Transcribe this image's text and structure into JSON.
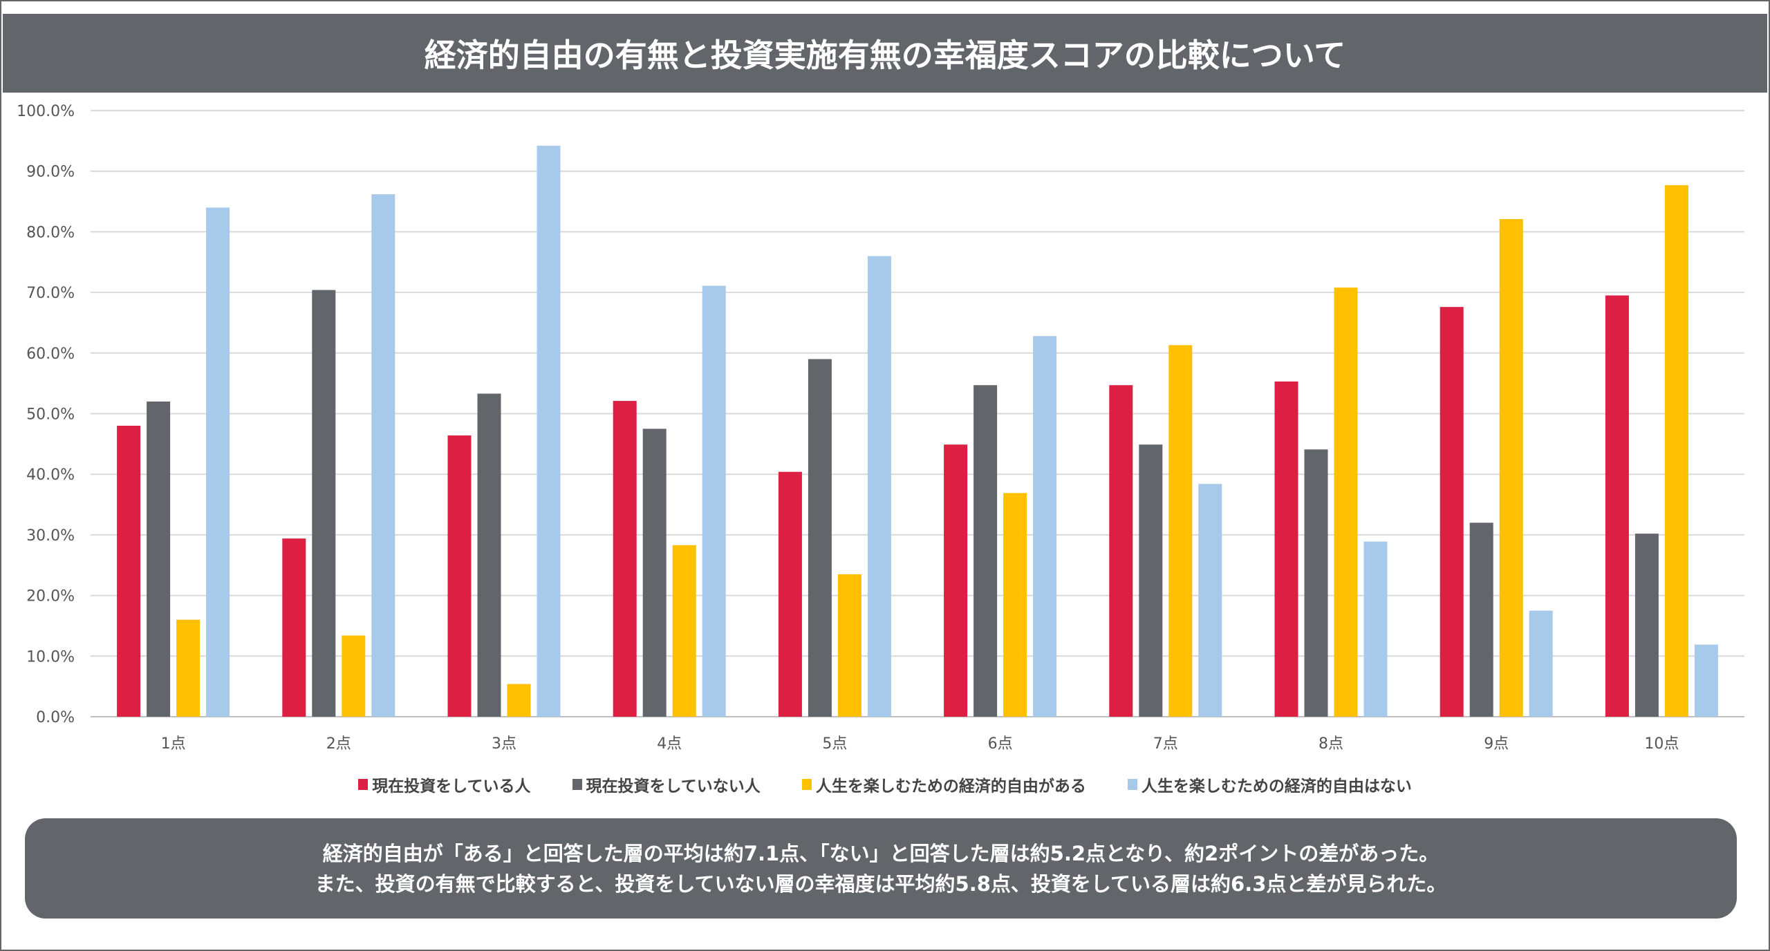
{
  "chart_data": {
    "type": "bar",
    "title": "経済的自由の有無と投資実施有無の幸福度スコアの比較について",
    "categories": [
      "1点",
      "2点",
      "3点",
      "4点",
      "5点",
      "6点",
      "7点",
      "8点",
      "9点",
      "10点"
    ],
    "ylim": [
      0,
      100
    ],
    "yticks": [
      "0.0%",
      "10.0%",
      "20.0%",
      "30.0%",
      "40.0%",
      "50.0%",
      "60.0%",
      "70.0%",
      "80.0%",
      "90.0%",
      "100.0%"
    ],
    "grid": true,
    "legend_placement": "bottom",
    "series": [
      {
        "name": "現在投資をしている人",
        "color": "#dc1f43",
        "values": [
          48.0,
          29.4,
          46.4,
          52.1,
          40.4,
          44.9,
          54.7,
          55.3,
          67.6,
          69.5
        ]
      },
      {
        "name": "現在投資をしていない人",
        "color": "#62656a",
        "values": [
          52.0,
          70.4,
          53.3,
          47.5,
          59.0,
          54.7,
          44.9,
          44.1,
          32.0,
          30.2
        ]
      },
      {
        "name": "人生を楽しむための経済的自由がある",
        "color": "#fec000",
        "values": [
          16.0,
          13.4,
          5.4,
          28.3,
          23.5,
          36.9,
          61.3,
          70.8,
          82.1,
          87.7
        ]
      },
      {
        "name": "人生を楽しむための経済的自由はない",
        "color": "#a7c9ea",
        "values": [
          84.0,
          86.2,
          94.2,
          71.1,
          76.0,
          62.8,
          38.4,
          28.9,
          17.5,
          11.9
        ]
      }
    ]
  },
  "summary": {
    "line1": "経済的自由が「ある」と回答した層の平均は約7.1点、「ない」と回答した層は約5.2点となり、約2ポイントの差があった。",
    "line2": "また、投資の有無で比較すると、投資をしていない層の幸福度は平均約5.8点、投資をしている層は約6.3点と差が見られた。"
  }
}
